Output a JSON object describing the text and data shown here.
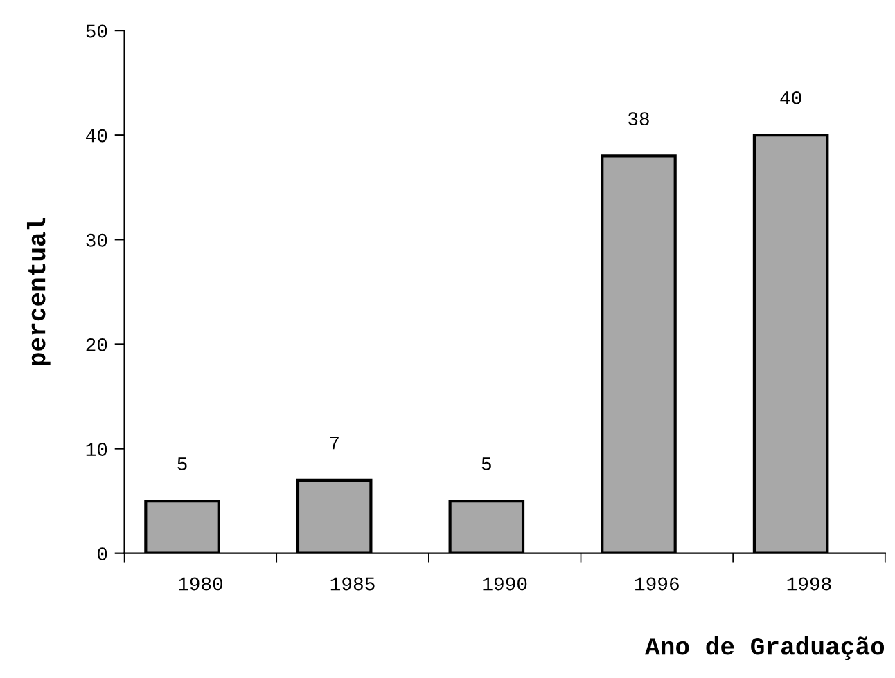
{
  "chart_data": {
    "type": "bar",
    "xlabel": "Ano de Graduação",
    "ylabel": "percentual",
    "categories": [
      "1980",
      "1985",
      "1990",
      "1996",
      "1998"
    ],
    "values": [
      5,
      7,
      5,
      38,
      40
    ],
    "color": "#a8a8a8",
    "ylim": [
      0,
      50
    ],
    "yticks": [
      0,
      10,
      20,
      30,
      40,
      50
    ],
    "grid": false,
    "data_labels": true
  }
}
